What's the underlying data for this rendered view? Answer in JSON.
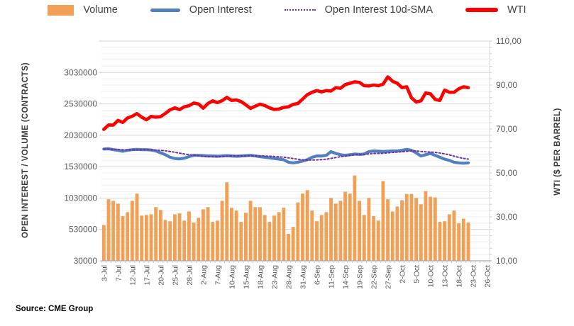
{
  "legend": {
    "items": [
      {
        "id": "volume",
        "label": "Volume",
        "color": "#F1A055",
        "swatch": "bar"
      },
      {
        "id": "open-interest",
        "label": "Open Interest",
        "color": "#5081BE",
        "swatch": "line"
      },
      {
        "id": "open-interest-sma",
        "label": "Open Interest 10d-SMA",
        "color": "#7030A0",
        "swatch": "dotted-line"
      },
      {
        "id": "wti",
        "label": "WTI",
        "color": "#FE0000",
        "swatch": "thick-line"
      }
    ]
  },
  "source_note": "Source: CME Group",
  "chart_data": {
    "type": "combo",
    "grid": true,
    "legend_position": "top",
    "x": [
      "3-Jul",
      "5-Jul",
      "6-Jul",
      "7-Jul",
      "10-Jul",
      "11-Jul",
      "12-Jul",
      "13-Jul",
      "14-Jul",
      "17-Jul",
      "18-Jul",
      "19-Jul",
      "20-Jul",
      "21-Jul",
      "24-Jul",
      "25-Jul",
      "26-Jul",
      "27-Jul",
      "28-Jul",
      "31-Jul",
      "1-Aug",
      "2-Aug",
      "3-Aug",
      "4-Aug",
      "7-Aug",
      "8-Aug",
      "9-Aug",
      "10-Aug",
      "11-Aug",
      "14-Aug",
      "15-Aug",
      "16-Aug",
      "17-Aug",
      "18-Aug",
      "21-Aug",
      "22-Aug",
      "23-Aug",
      "24-Aug",
      "25-Aug",
      "28-Aug",
      "29-Aug",
      "30-Aug",
      "31-Aug",
      "1-Sep",
      "5-Sep",
      "6-Sep",
      "7-Sep",
      "8-Sep",
      "11-Sep",
      "12-Sep",
      "13-Sep",
      "14-Sep",
      "15-Sep",
      "18-Sep",
      "19-Sep",
      "20-Sep",
      "21-Sep",
      "22-Sep",
      "25-Sep",
      "26-Sep",
      "27-Sep",
      "28-Sep",
      "29-Sep",
      "2-Oct",
      "3-Oct",
      "4-Oct",
      "5-Oct",
      "6-Oct",
      "9-Oct",
      "10-Oct",
      "11-Oct",
      "12-Oct",
      "13-Oct",
      "16-Oct",
      "17-Oct",
      "18-Oct",
      "19-Oct",
      "20-Oct"
    ],
    "x_axis": {
      "total_slots": 82,
      "tick_step": 3,
      "tick_labels": [
        "3-Jul",
        "7-Jul",
        "12-Jul",
        "17-Jul",
        "20-Jul",
        "25-Jul",
        "28-Jul",
        "2-Aug",
        "7-Aug",
        "10-Aug",
        "15-Aug",
        "18-Aug",
        "23-Aug",
        "28-Aug",
        "31-Aug",
        "6-Sep",
        "11-Sep",
        "14-Sep",
        "19-Sep",
        "22-Sep",
        "27-Sep",
        "2-Oct",
        "5-Oct",
        "10-Oct",
        "13-Oct",
        "18-Oct",
        "23-Oct",
        "26-Oct"
      ]
    },
    "y_left": {
      "label": "OPEN INTEREST / VOLUME (CONTRACTS)",
      "min": 30000,
      "max": 3530000,
      "minor_grid_step": 100000,
      "major_step": 500000,
      "tick_values": [
        30000,
        530000,
        1030000,
        1530000,
        2030000,
        2530000,
        3030000
      ],
      "tick_labels": [
        "30000",
        "530000",
        "1030000",
        "1530000",
        "2030000",
        "2530000",
        "3030000"
      ]
    },
    "y_right": {
      "label": "WTI ($ PER BARREL)",
      "min": 10,
      "max": 110,
      "tick_values": [
        10,
        30,
        50,
        70,
        90,
        110
      ],
      "tick_labels": [
        "10,00",
        "30,00",
        "50,00",
        "70,00",
        "90,00",
        "110,00"
      ]
    },
    "series": [
      {
        "name": "Volume",
        "type": "bar",
        "axis": "left",
        "color": "#F1A055",
        "values": [
          600000,
          1010000,
          985000,
          940000,
          740000,
          805000,
          985000,
          1100000,
          750000,
          760000,
          770000,
          885000,
          840000,
          680000,
          660000,
          770000,
          785000,
          670000,
          815000,
          640000,
          715000,
          850000,
          885000,
          650000,
          670000,
          985000,
          1280000,
          875000,
          830000,
          650000,
          795000,
          985000,
          885000,
          885000,
          760000,
          650000,
          750000,
          805000,
          875000,
          460000,
          570000,
          960000,
          1100000,
          1155000,
          830000,
          660000,
          760000,
          805000,
          1030000,
          940000,
          985000,
          1130000,
          1100000,
          1390000,
          985000,
          760000,
          1030000,
          740000,
          670000,
          1300000,
          1010000,
          815000,
          895000,
          995000,
          1095000,
          1095000,
          1030000,
          930000,
          1140000,
          1050000,
          1040000,
          650000,
          660000,
          770000,
          830000,
          630000,
          700000,
          640000
        ]
      },
      {
        "name": "Open Interest",
        "type": "line",
        "axis": "left",
        "color": "#5081BE",
        "width": 4.2,
        "values": [
          1810000,
          1815000,
          1800000,
          1790000,
          1775000,
          1790000,
          1800000,
          1805000,
          1800000,
          1800000,
          1795000,
          1780000,
          1750000,
          1720000,
          1680000,
          1660000,
          1655000,
          1665000,
          1690000,
          1710000,
          1710000,
          1705000,
          1700000,
          1700000,
          1695000,
          1700000,
          1705000,
          1700000,
          1695000,
          1700000,
          1705000,
          1710000,
          1700000,
          1690000,
          1680000,
          1670000,
          1660000,
          1650000,
          1640000,
          1600000,
          1590000,
          1600000,
          1620000,
          1640000,
          1680000,
          1700000,
          1700000,
          1710000,
          1770000,
          1740000,
          1720000,
          1710000,
          1720000,
          1730000,
          1725000,
          1730000,
          1770000,
          1780000,
          1775000,
          1770000,
          1775000,
          1780000,
          1780000,
          1790000,
          1805000,
          1790000,
          1750000,
          1700000,
          1720000,
          1740000,
          1710000,
          1680000,
          1650000,
          1630000,
          1600000,
          1590000,
          1585000,
          1590000
        ]
      },
      {
        "name": "Open Interest 10d-SMA",
        "type": "dotted-line",
        "axis": "left",
        "color": "#7030A0",
        "width": 2,
        "values": [
          1810000,
          1812000,
          1808000,
          1804000,
          1798000,
          1797000,
          1797000,
          1798000,
          1798000,
          1799000,
          1797000,
          1794000,
          1789000,
          1782000,
          1772000,
          1759000,
          1745000,
          1731000,
          1720000,
          1711000,
          1702000,
          1695000,
          1690000,
          1688000,
          1689000,
          1693000,
          1698000,
          1702000,
          1702000,
          1701000,
          1701000,
          1701000,
          1701000,
          1700000,
          1699000,
          1696000,
          1691000,
          1686000,
          1681000,
          1671000,
          1659000,
          1648000,
          1640000,
          1635000,
          1635000,
          1638000,
          1642000,
          1648000,
          1661000,
          1675000,
          1688000,
          1699000,
          1709000,
          1718000,
          1723000,
          1726000,
          1733000,
          1740000,
          1740000,
          1743000,
          1749000,
          1756000,
          1762000,
          1768000,
          1776000,
          1782000,
          1780000,
          1772000,
          1766000,
          1763000,
          1757000,
          1747000,
          1734000,
          1718000,
          1697000,
          1677000,
          1661000,
          1650000
        ]
      },
      {
        "name": "WTI",
        "type": "line",
        "axis": "right",
        "color": "#FE0000",
        "width": 4.6,
        "values": [
          69.8,
          71.8,
          71.8,
          73.9,
          73.0,
          75.0,
          75.8,
          77.0,
          75.4,
          74.2,
          75.7,
          75.4,
          75.6,
          77.1,
          78.7,
          79.6,
          78.8,
          80.1,
          80.6,
          81.8,
          81.4,
          79.5,
          81.6,
          82.8,
          82.0,
          82.9,
          84.4,
          83.0,
          83.2,
          82.5,
          81.0,
          79.4,
          80.4,
          81.3,
          80.7,
          79.6,
          78.9,
          79.1,
          79.8,
          80.1,
          81.2,
          81.6,
          83.6,
          85.6,
          86.7,
          87.5,
          86.9,
          87.5,
          87.3,
          88.8,
          88.5,
          90.2,
          90.8,
          91.5,
          91.2,
          89.7,
          89.6,
          90.0,
          89.7,
          90.4,
          93.7,
          91.7,
          90.8,
          88.8,
          89.2,
          84.2,
          82.3,
          82.8,
          86.4,
          86.0,
          83.5,
          83.0,
          87.7,
          86.7,
          86.7,
          88.3,
          89.2,
          88.8
        ]
      }
    ]
  }
}
